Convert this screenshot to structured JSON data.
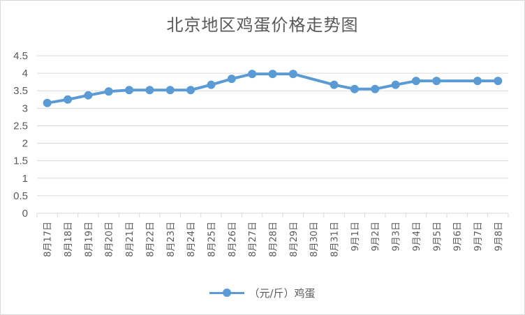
{
  "chart_data": {
    "type": "line",
    "title": "北京地区鸡蛋价格走势图",
    "xlabel": "",
    "ylabel": "",
    "ylim": [
      0,
      4.5
    ],
    "yticks": [
      "0",
      "0.5",
      "1",
      "1.5",
      "2",
      "2.5",
      "3",
      "3.5",
      "4",
      "4.5"
    ],
    "grid": true,
    "legend_position": "bottom",
    "color": "#5b9bd5",
    "categories": [
      "8月17日",
      "8月18日",
      "8月19日",
      "8月20日",
      "8月21日",
      "8月22日",
      "8月23日",
      "8月24日",
      "8月25日",
      "8月26日",
      "8月27日",
      "8月28日",
      "8月29日",
      "8月30日",
      "8月31日",
      "9月1日",
      "9月2日",
      "9月3日",
      "9月4日",
      "9月5日",
      "9月6日",
      "9月7日",
      "9月8日"
    ],
    "series": [
      {
        "name": "（元/斤）鸡蛋",
        "values": [
          3.15,
          3.25,
          3.37,
          3.48,
          3.52,
          3.52,
          3.52,
          3.52,
          3.67,
          3.84,
          3.98,
          3.98,
          3.98,
          null,
          3.67,
          3.55,
          3.55,
          3.67,
          3.78,
          3.78,
          null,
          3.78,
          3.78
        ]
      }
    ]
  }
}
